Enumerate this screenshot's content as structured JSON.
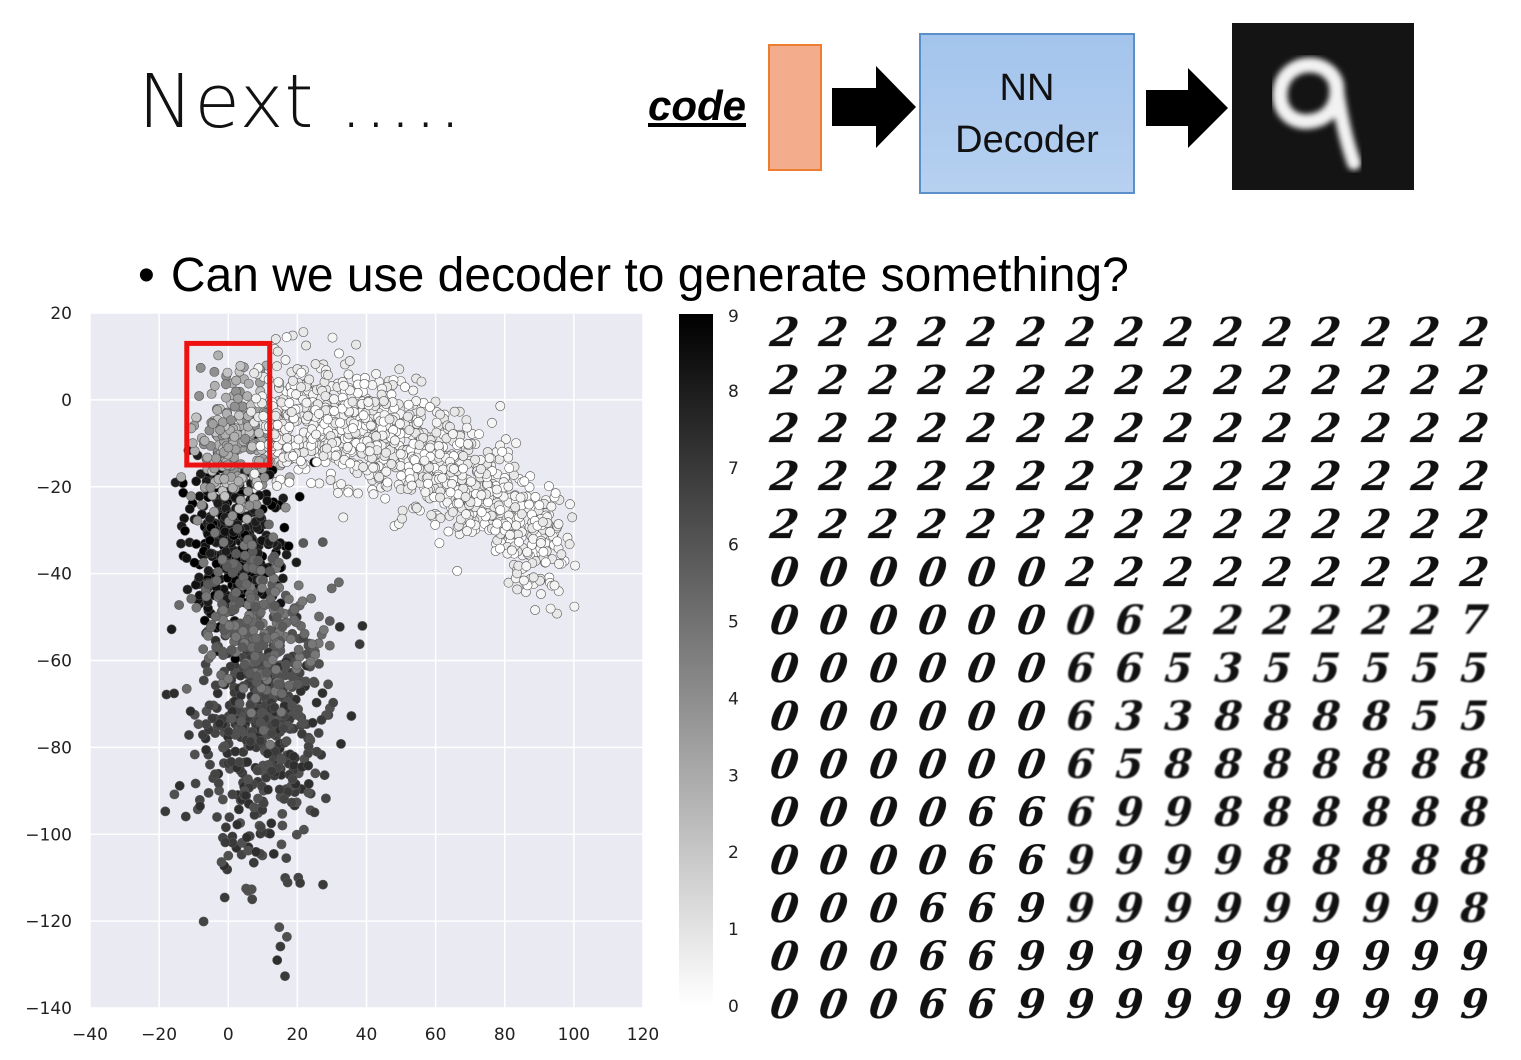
{
  "slide": {
    "title": "Next …..",
    "bullet": "Can we use decoder to generate something?"
  },
  "diagram": {
    "code_label": "code",
    "decoder_line1": "NN",
    "decoder_line2": "Decoder",
    "output_digit": "9"
  },
  "scatter": {
    "x_ticks": [
      "−40",
      "−20",
      "0",
      "20",
      "40",
      "60",
      "80",
      "100",
      "120"
    ],
    "y_ticks": [
      "20",
      "0",
      "−20",
      "−40",
      "−60",
      "−80",
      "−100",
      "−120",
      "−140"
    ],
    "xlim": [
      -40,
      120
    ],
    "ylim": [
      -140,
      20
    ],
    "highlight_box": {
      "x": [
        -12,
        12
      ],
      "y": [
        -15,
        13
      ]
    },
    "highlight_color": "#ee1111",
    "background_color": "#eaeaf2"
  },
  "colorbar": {
    "ticks": [
      "0",
      "1",
      "2",
      "3",
      "4",
      "5",
      "6",
      "7",
      "8",
      "9"
    ],
    "range": [
      0,
      9
    ]
  },
  "manifold_rows": [
    "222222222222222",
    "222222222222222",
    "222222222222222",
    "222222222222222",
    "222222222222222",
    "000000222222222",
    "000000062222227",
    "000000665355555",
    "000000633888855",
    "000000658888888",
    "000066699888888",
    "000066999988888",
    "000669999999998",
    "000669999999999",
    "000669999999999"
  ]
}
